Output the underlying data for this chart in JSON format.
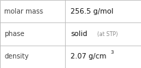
{
  "rows": [
    {
      "label": "molar mass",
      "value": "256.5 g/mol",
      "type": "plain"
    },
    {
      "label": "phase",
      "value": "solid",
      "suffix": " (at STP)",
      "type": "suffix"
    },
    {
      "label": "density",
      "value": "2.07 g/cm",
      "superscript": "3",
      "type": "super"
    }
  ],
  "bg_color": "#ffffff",
  "border_color": "#bbbbbb",
  "label_color": "#444444",
  "value_color": "#111111",
  "suffix_color": "#888888",
  "label_fontsize": 7.0,
  "value_fontsize": 7.5,
  "suffix_fontsize": 5.5,
  "super_fontsize": 5.0,
  "col_split": 0.46
}
